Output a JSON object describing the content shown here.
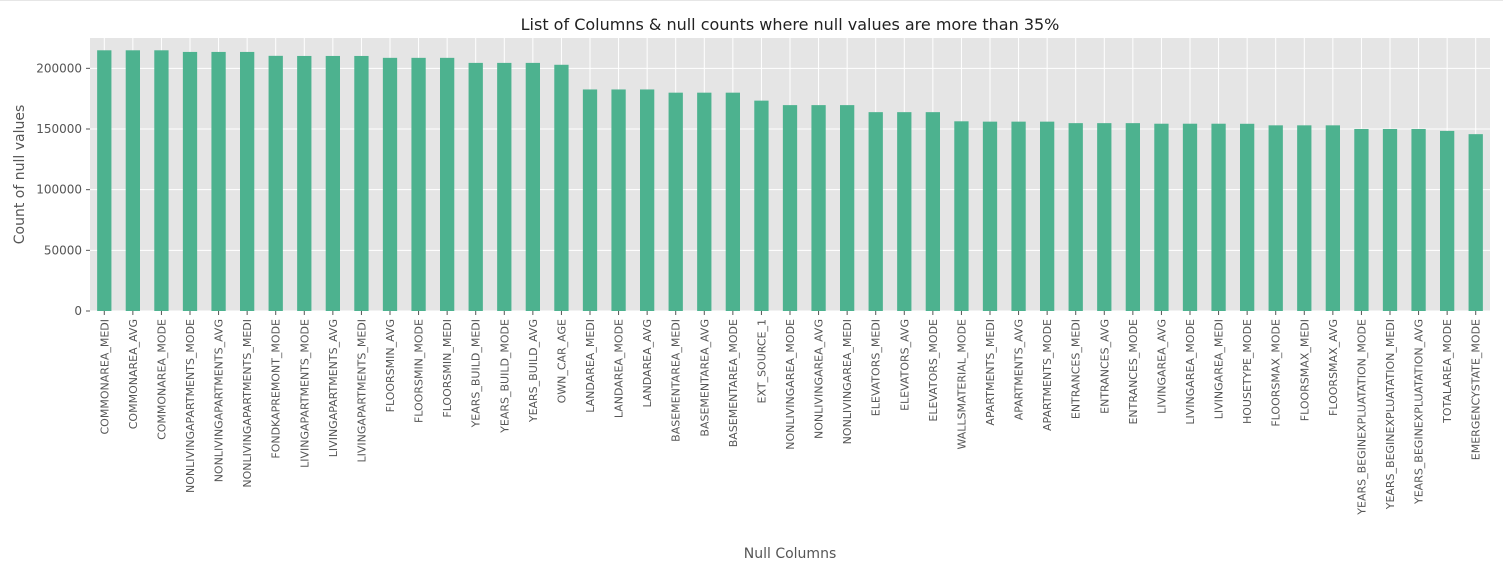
{
  "chart_data": {
    "type": "bar",
    "title": "List of Columns & null counts where null values are more than 35%",
    "xlabel": "Null Columns",
    "ylabel": "Count of null values",
    "ylim": [
      0,
      225000
    ],
    "grid": true,
    "yticks": [
      {
        "value": 0,
        "label": "0"
      },
      {
        "value": 50000,
        "label": "50000"
      },
      {
        "value": 100000,
        "label": "100000"
      },
      {
        "value": 150000,
        "label": "150000"
      },
      {
        "value": 200000,
        "label": "200000"
      }
    ],
    "categories": [
      "COMMONAREA_MEDI",
      "COMMONAREA_AVG",
      "COMMONAREA_MODE",
      "NONLIVINGAPARTMENTS_MODE",
      "NONLIVINGAPARTMENTS_AVG",
      "NONLIVINGAPARTMENTS_MEDI",
      "FONDKAPREMONT_MODE",
      "LIVINGAPARTMENTS_MODE",
      "LIVINGAPARTMENTS_AVG",
      "LIVINGAPARTMENTS_MEDI",
      "FLOORSMIN_AVG",
      "FLOORSMIN_MODE",
      "FLOORSMIN_MEDI",
      "YEARS_BUILD_MEDI",
      "YEARS_BUILD_MODE",
      "YEARS_BUILD_AVG",
      "OWN_CAR_AGE",
      "LANDAREA_MEDI",
      "LANDAREA_MODE",
      "LANDAREA_AVG",
      "BASEMENTAREA_MEDI",
      "BASEMENTAREA_AVG",
      "BASEMENTAREA_MODE",
      "EXT_SOURCE_1",
      "NONLIVINGAREA_MODE",
      "NONLIVINGAREA_AVG",
      "NONLIVINGAREA_MEDI",
      "ELEVATORS_MEDI",
      "ELEVATORS_AVG",
      "ELEVATORS_MODE",
      "WALLSMATERIAL_MODE",
      "APARTMENTS_MEDI",
      "APARTMENTS_AVG",
      "APARTMENTS_MODE",
      "ENTRANCES_MEDI",
      "ENTRANCES_AVG",
      "ENTRANCES_MODE",
      "LIVINGAREA_AVG",
      "LIVINGAREA_MODE",
      "LIVINGAREA_MEDI",
      "HOUSETYPE_MODE",
      "FLOORSMAX_MODE",
      "FLOORSMAX_MEDI",
      "FLOORSMAX_AVG",
      "YEARS_BEGINEXPLUATATION_MODE",
      "YEARS_BEGINEXPLUATATION_MEDI",
      "YEARS_BEGINEXPLUATATION_AVG",
      "TOTALAREA_MODE",
      "EMERGENCYSTATE_MODE"
    ],
    "values": [
      214865,
      214865,
      214865,
      213514,
      213514,
      213514,
      210295,
      210199,
      210199,
      210199,
      208642,
      208642,
      208642,
      204488,
      204488,
      204488,
      202929,
      182590,
      182590,
      182590,
      179943,
      179943,
      179943,
      173378,
      169682,
      169682,
      169682,
      163891,
      163891,
      163891,
      156341,
      156061,
      156061,
      156061,
      154828,
      154828,
      154828,
      154350,
      154350,
      154350,
      154297,
      153020,
      153020,
      153020,
      150007,
      150007,
      150007,
      148431,
      145755
    ],
    "colors": {
      "bar": "#4db28f",
      "plot_background": "#e5e5e5",
      "grid": "#ffffff",
      "tick_text": "#555555",
      "label_text": "#555555",
      "title_text": "#222222"
    }
  }
}
